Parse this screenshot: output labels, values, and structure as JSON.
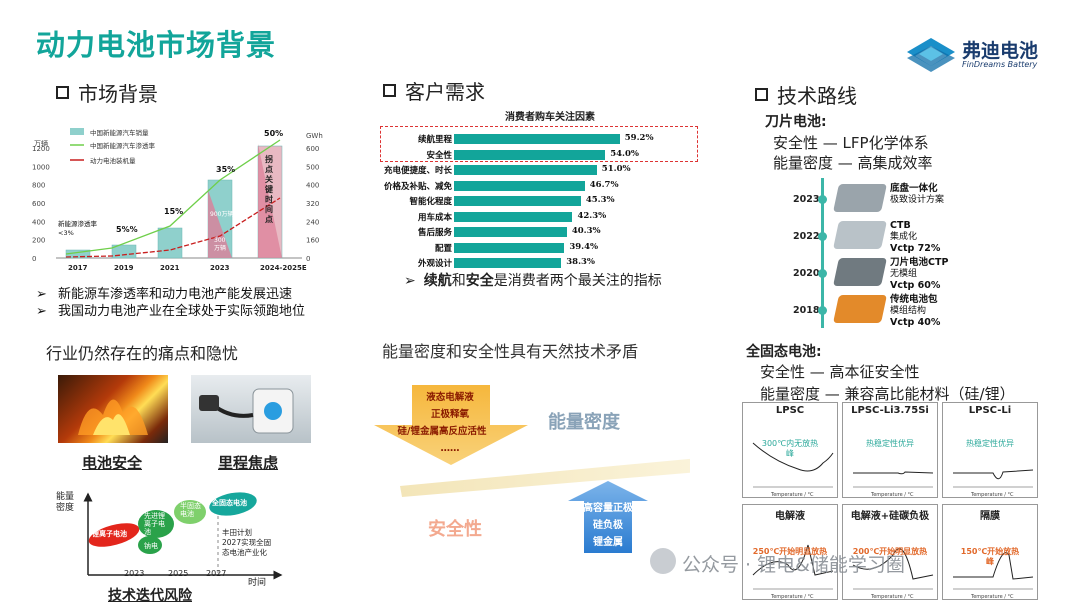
{
  "title": "动力电池市场背景",
  "logo": {
    "name": "弗迪电池",
    "sub": "FinDreams Battery"
  },
  "market": {
    "heading": "市场背景",
    "legend": [
      "中国新能源汽车销量",
      "中国新能源汽车渗透率",
      "动力电池装机量"
    ],
    "left_unit": "万辆",
    "right_unit": "GWh",
    "left_ticks": [
      "1200",
      "1000",
      "800",
      "600",
      "400",
      "200",
      "0"
    ],
    "right_ticks": [
      "600",
      "500",
      "400",
      "320",
      "240",
      "160",
      "0"
    ],
    "years": [
      "2017",
      "2019",
      "2021",
      "2023",
      "2024-2025E"
    ],
    "pcts": [
      "新能源渗透率\n<3%",
      "5%%",
      "15%",
      "35%",
      "50%"
    ],
    "annot_900": "900万辆",
    "annot_300": "300\n万辆",
    "tipping": "拐\n点\n关\n键\n时\n间\n点",
    "bullets": [
      "新能源车渗透率和动力电池产能发展迅速",
      "我国动力电池产业在全球处于实际领跑地位"
    ]
  },
  "customer": {
    "heading": "客户需求",
    "chart_title": "消费者购车关注因素",
    "items": [
      {
        "label": "续航里程",
        "value": "59.2%",
        "v": 59.2
      },
      {
        "label": "安全性",
        "value": "54.0%",
        "v": 54.0
      },
      {
        "label": "充电便捷度、时长",
        "value": "51.0%",
        "v": 51.0
      },
      {
        "label": "价格及补贴、减免",
        "value": "46.7%",
        "v": 46.7
      },
      {
        "label": "智能化程度",
        "value": "45.3%",
        "v": 45.3
      },
      {
        "label": "用车成本",
        "value": "42.3%",
        "v": 42.3
      },
      {
        "label": "售后服务",
        "value": "40.3%",
        "v": 40.3
      },
      {
        "label": "配置",
        "value": "39.4%",
        "v": 39.4
      },
      {
        "label": "外观设计",
        "value": "38.3%",
        "v": 38.3
      }
    ],
    "conclusion_a": "续航",
    "conclusion_b": "和",
    "conclusion_c": "安全",
    "conclusion_d": "是消费者两个最关注的指标"
  },
  "tech": {
    "heading": "技术路线",
    "blade": "刀片电池:",
    "blade_l1": "安全性 — LFP化学体系",
    "blade_l2": "能量密度 — 高集成效率",
    "timeline": [
      {
        "year": "2023",
        "t1": "底盘一体化",
        "t2": "极致设计方案",
        "t3": ""
      },
      {
        "year": "2022",
        "t1": "CTB",
        "t2": "集成化",
        "t3": "Vctp 72%"
      },
      {
        "year": "2020",
        "t1": "刀片电池CTP",
        "t2": "无模组",
        "t3": "Vctp 60%"
      },
      {
        "year": "2018",
        "t1": "传统电池包",
        "t2": "模组结构",
        "t3": "Vctp 40%"
      }
    ],
    "solid": "全固态电池:",
    "solid_l1": "安全性 — 高本征安全性",
    "solid_l2": "能量密度 — 兼容高比能材料（硅/锂）",
    "cells": [
      {
        "t": "LPSC",
        "note": "300℃内无放热\n峰",
        "c": "g"
      },
      {
        "t": "LPSC-Li3.75Si",
        "note": "热稳定性优异",
        "c": "g"
      },
      {
        "t": "LPSC-Li",
        "note": "热稳定性优异",
        "c": "g"
      },
      {
        "t": "电解液",
        "note": "250℃开始明显放热",
        "c": "r"
      },
      {
        "t": "电解液+硅碳负极",
        "note": "200℃开始明显放热",
        "c": "r"
      },
      {
        "t": "隔膜",
        "note": "150℃开始放热\n峰",
        "c": "r"
      }
    ],
    "xaxis": "Temperature / °C"
  },
  "pain": {
    "heading": "行业仍然存在的痛点和隐忧",
    "img1": "电池安全",
    "img2": "里程焦虑",
    "axis_y": "能量\n密度",
    "axis_x": "时间",
    "bubbles": [
      "锂离子电池",
      "先进锂离子电池",
      "半固态电池",
      "全固态电池",
      "钠电"
    ],
    "years": [
      "2023",
      "2025",
      "2027"
    ],
    "note": "丰田计划\n2027实现全固\n态电池产业化",
    "risk": "技术迭代风险"
  },
  "tradeoff": {
    "heading": "能量密度和安全性具有天然技术矛盾",
    "down": [
      "液态电解液",
      "正极释氧",
      "硅/锂金属高反应活性",
      "……"
    ],
    "energy": "能量密度",
    "safety": "安全性",
    "up": [
      "高容量正极",
      "硅负极",
      "锂金属"
    ]
  },
  "watermark": "公众号 · 锂电&储能学习圈"
}
